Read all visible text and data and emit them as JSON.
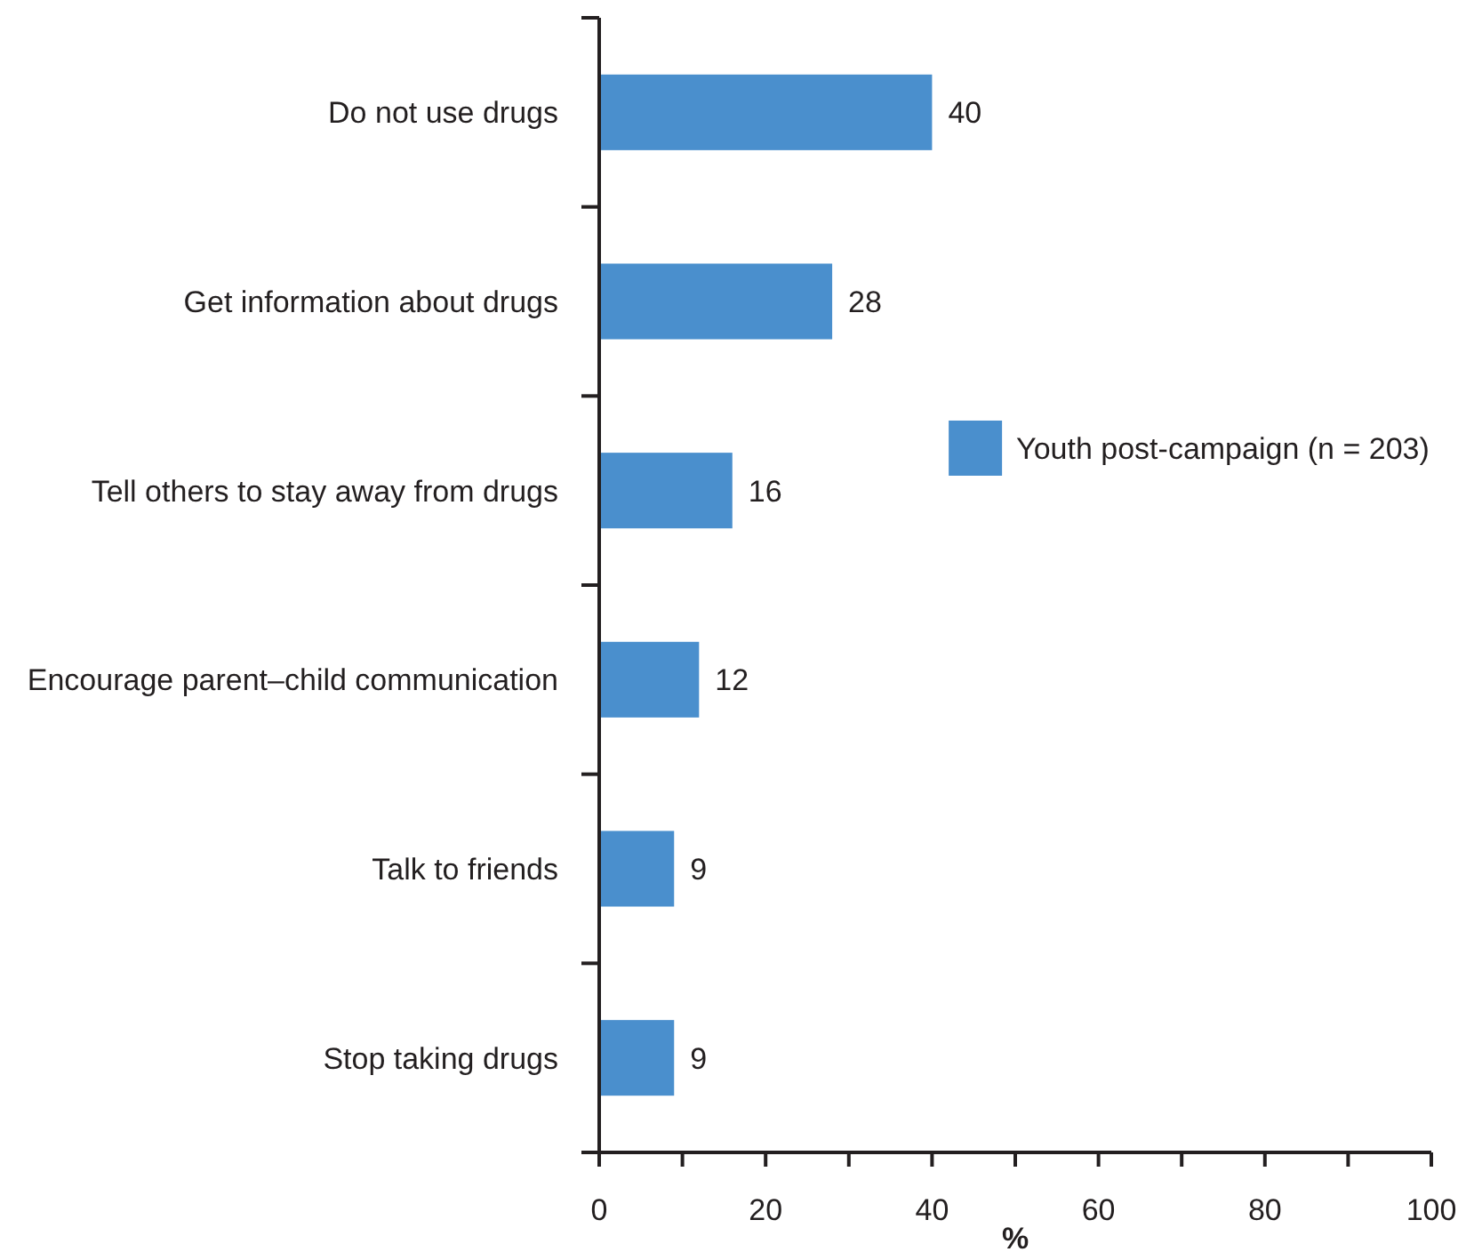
{
  "chart_data": {
    "type": "bar",
    "orientation": "horizontal",
    "categories": [
      "Do not use drugs",
      "Get information about drugs",
      "Tell others to stay away from drugs",
      "Encourage parent–child communication",
      "Talk to friends",
      "Stop taking drugs"
    ],
    "series": [
      {
        "name": "Youth post-campaign (n = 203)",
        "color": "#4a8fcd",
        "values": [
          40,
          28,
          16,
          12,
          9,
          9
        ]
      }
    ],
    "xlabel": "%",
    "xlim": [
      0,
      100
    ],
    "xticks": [
      0,
      {
        "value": 10,
        "label": null
      },
      20,
      {
        "value": 30,
        "label": null
      },
      40,
      {
        "value": 50,
        "label": null
      },
      60,
      {
        "value": 70,
        "label": null
      },
      80,
      {
        "value": 90,
        "label": null
      },
      100
    ],
    "data_labels": true,
    "legend": "right"
  }
}
